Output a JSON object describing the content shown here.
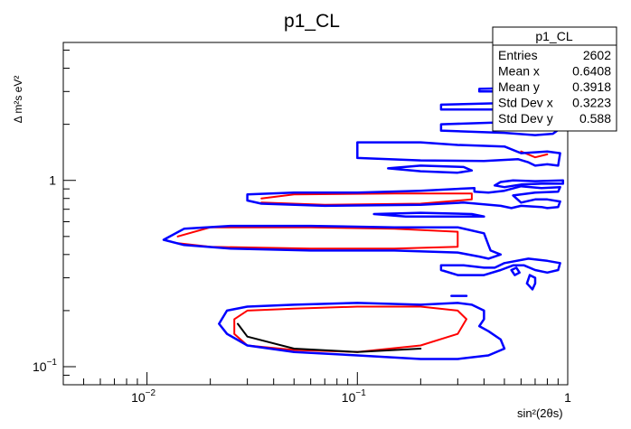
{
  "window": {
    "title": "p1_CL"
  },
  "stats_box": {
    "title": "p1_CL",
    "rows": [
      {
        "label": "Entries",
        "value": "2602"
      },
      {
        "label": "Mean x",
        "value": "0.6408"
      },
      {
        "label": "Mean y",
        "value": "0.3918"
      },
      {
        "label": "Std Dev x",
        "value": "0.3223"
      },
      {
        "label": "Std Dev y",
        "value": "0.588"
      }
    ]
  },
  "colors": {
    "red": "#ff0000",
    "black": "#000000",
    "blue": "#0000ff",
    "frame": "#000000"
  },
  "chart_data": {
    "type": "contour",
    "title": "p1_CL",
    "xlabel": "sin²(2θs)",
    "ylabel": "Δ m²s eV²",
    "x_scale": "log",
    "y_scale": "log",
    "xlim": [
      0.004,
      1.0
    ],
    "ylim": [
      0.08,
      5.5
    ],
    "x_ticks": [
      {
        "value": 0.01,
        "label": "10",
        "exp": "−2"
      },
      {
        "value": 0.1,
        "label": "10",
        "exp": "−1"
      },
      {
        "value": 1.0,
        "label": "1",
        "exp": ""
      }
    ],
    "y_ticks": [
      {
        "value": 0.1,
        "label": "10",
        "exp": "−1"
      },
      {
        "value": 1.0,
        "label": "1",
        "exp": ""
      }
    ],
    "grid": false,
    "series": [
      {
        "color": "#ff0000",
        "width": 2,
        "contours": [
          [
            [
              0.026,
              0.15
            ],
            [
              0.03,
              0.13
            ],
            [
              0.05,
              0.123
            ],
            [
              0.1,
              0.12
            ],
            [
              0.2,
              0.13
            ],
            [
              0.3,
              0.15
            ],
            [
              0.33,
              0.18
            ],
            [
              0.3,
              0.2
            ],
            [
              0.2,
              0.21
            ],
            [
              0.1,
              0.21
            ],
            [
              0.05,
              0.205
            ],
            [
              0.03,
              0.2
            ],
            [
              0.026,
              0.18
            ],
            [
              0.026,
              0.15
            ]
          ],
          [
            [
              0.014,
              0.46
            ],
            [
              0.02,
              0.44
            ],
            [
              0.06,
              0.43
            ],
            [
              0.15,
              0.43
            ],
            [
              0.3,
              0.44
            ],
            [
              0.3,
              0.53
            ],
            [
              0.15,
              0.55
            ],
            [
              0.06,
              0.56
            ],
            [
              0.02,
              0.56
            ],
            [
              0.014,
              0.5
            ]
          ],
          [
            [
              0.035,
              0.76
            ],
            [
              0.07,
              0.74
            ],
            [
              0.2,
              0.75
            ],
            [
              0.35,
              0.79
            ],
            [
              0.35,
              0.85
            ],
            [
              0.15,
              0.85
            ],
            [
              0.05,
              0.84
            ],
            [
              0.035,
              0.8
            ]
          ],
          [
            [
              0.6,
              1.43
            ],
            [
              0.7,
              1.33
            ],
            [
              0.8,
              1.38
            ]
          ]
        ]
      },
      {
        "color": "#000000",
        "width": 2,
        "contours": [
          [
            [
              0.027,
              0.17
            ],
            [
              0.03,
              0.145
            ],
            [
              0.05,
              0.125
            ],
            [
              0.1,
              0.12
            ],
            [
              0.2,
              0.125
            ]
          ]
        ]
      },
      {
        "color": "#0000ff",
        "width": 2.5,
        "contours": [
          [
            [
              0.022,
              0.17
            ],
            [
              0.024,
              0.15
            ],
            [
              0.03,
              0.13
            ],
            [
              0.05,
              0.12
            ],
            [
              0.1,
              0.115
            ],
            [
              0.2,
              0.11
            ],
            [
              0.3,
              0.11
            ],
            [
              0.42,
              0.115
            ],
            [
              0.5,
              0.125
            ],
            [
              0.48,
              0.14
            ],
            [
              0.42,
              0.155
            ],
            [
              0.38,
              0.165
            ],
            [
              0.4,
              0.18
            ],
            [
              0.4,
              0.2
            ],
            [
              0.35,
              0.215
            ],
            [
              0.3,
              0.22
            ],
            [
              0.2,
              0.215
            ],
            [
              0.1,
              0.22
            ],
            [
              0.05,
              0.215
            ],
            [
              0.03,
              0.21
            ],
            [
              0.024,
              0.2
            ],
            [
              0.022,
              0.17
            ]
          ],
          [
            [
              0.012,
              0.48
            ],
            [
              0.015,
              0.45
            ],
            [
              0.025,
              0.43
            ],
            [
              0.06,
              0.42
            ],
            [
              0.15,
              0.42
            ],
            [
              0.3,
              0.41
            ],
            [
              0.38,
              0.39
            ],
            [
              0.42,
              0.38
            ],
            [
              0.48,
              0.4
            ],
            [
              0.43,
              0.42
            ],
            [
              0.42,
              0.45
            ],
            [
              0.4,
              0.52
            ],
            [
              0.3,
              0.56
            ],
            [
              0.15,
              0.56
            ],
            [
              0.06,
              0.57
            ],
            [
              0.025,
              0.57
            ],
            [
              0.015,
              0.55
            ],
            [
              0.012,
              0.48
            ]
          ],
          [
            [
              0.25,
              0.35
            ],
            [
              0.25,
              0.33
            ],
            [
              0.3,
              0.31
            ],
            [
              0.4,
              0.31
            ],
            [
              0.48,
              0.33
            ],
            [
              0.55,
              0.35
            ],
            [
              0.62,
              0.35
            ],
            [
              0.7,
              0.33
            ],
            [
              0.8,
              0.32
            ],
            [
              0.9,
              0.33
            ],
            [
              0.92,
              0.36
            ],
            [
              0.8,
              0.37
            ],
            [
              0.65,
              0.38
            ],
            [
              0.5,
              0.36
            ],
            [
              0.45,
              0.34
            ],
            [
              0.4,
              0.34
            ],
            [
              0.32,
              0.35
            ],
            [
              0.25,
              0.35
            ]
          ],
          [
            [
              0.54,
              0.33
            ],
            [
              0.56,
              0.31
            ],
            [
              0.59,
              0.32
            ],
            [
              0.57,
              0.34
            ],
            [
              0.54,
              0.33
            ]
          ],
          [
            [
              0.03,
              0.78
            ],
            [
              0.035,
              0.75
            ],
            [
              0.07,
              0.73
            ],
            [
              0.2,
              0.74
            ],
            [
              0.32,
              0.76
            ],
            [
              0.48,
              0.73
            ],
            [
              0.54,
              0.71
            ],
            [
              0.6,
              0.73
            ],
            [
              0.75,
              0.72
            ],
            [
              0.8,
              0.71
            ],
            [
              0.9,
              0.72
            ],
            [
              0.92,
              0.77
            ],
            [
              0.8,
              0.79
            ],
            [
              0.7,
              0.79
            ],
            [
              0.6,
              0.76
            ],
            [
              0.55,
              0.83
            ],
            [
              0.7,
              0.86
            ],
            [
              0.9,
              0.87
            ],
            [
              0.92,
              0.92
            ],
            [
              0.75,
              0.91
            ],
            [
              0.6,
              0.93
            ],
            [
              0.5,
              0.88
            ],
            [
              0.42,
              0.86
            ],
            [
              0.36,
              0.87
            ],
            [
              0.36,
              0.91
            ],
            [
              0.2,
              0.88
            ],
            [
              0.1,
              0.86
            ],
            [
              0.05,
              0.86
            ],
            [
              0.03,
              0.84
            ],
            [
              0.03,
              0.78
            ]
          ],
          [
            [
              0.12,
              0.66
            ],
            [
              0.17,
              0.64
            ],
            [
              0.28,
              0.64
            ],
            [
              0.4,
              0.64
            ],
            [
              0.35,
              0.66
            ],
            [
              0.2,
              0.67
            ],
            [
              0.12,
              0.66
            ]
          ],
          [
            [
              0.64,
              0.28
            ],
            [
              0.68,
              0.26
            ],
            [
              0.7,
              0.28
            ],
            [
              0.7,
              0.3
            ],
            [
              0.66,
              0.31
            ],
            [
              0.64,
              0.28
            ]
          ],
          [
            [
              0.28,
              0.24
            ],
            [
              0.33,
              0.24
            ]
          ],
          [
            [
              0.1,
              1.32
            ],
            [
              0.2,
              1.28
            ],
            [
              0.4,
              1.27
            ],
            [
              0.58,
              1.3
            ],
            [
              0.65,
              1.25
            ],
            [
              0.7,
              1.2
            ],
            [
              0.8,
              1.22
            ],
            [
              0.9,
              1.2
            ],
            [
              0.92,
              1.4
            ],
            [
              0.8,
              1.43
            ],
            [
              0.6,
              1.4
            ],
            [
              0.5,
              1.52
            ],
            [
              0.3,
              1.55
            ],
            [
              0.2,
              1.6
            ],
            [
              0.1,
              1.6
            ],
            [
              0.1,
              1.32
            ]
          ],
          [
            [
              0.45,
              0.94
            ],
            [
              0.5,
              0.92
            ],
            [
              0.6,
              0.95
            ],
            [
              0.75,
              0.96
            ],
            [
              0.95,
              0.96
            ],
            [
              0.95,
              1.0
            ],
            [
              0.7,
              0.99
            ],
            [
              0.55,
              1.0
            ],
            [
              0.48,
              0.98
            ],
            [
              0.45,
              0.94
            ]
          ],
          [
            [
              0.14,
              1.16
            ],
            [
              0.2,
              1.12
            ],
            [
              0.3,
              1.1
            ],
            [
              0.35,
              1.13
            ],
            [
              0.32,
              1.18
            ],
            [
              0.2,
              1.2
            ],
            [
              0.14,
              1.16
            ]
          ],
          [
            [
              0.25,
              1.85
            ],
            [
              0.5,
              1.8
            ],
            [
              0.7,
              1.75
            ],
            [
              0.85,
              1.78
            ],
            [
              0.92,
              1.9
            ],
            [
              0.8,
              2.0
            ],
            [
              0.5,
              2.05
            ],
            [
              0.25,
              2.0
            ],
            [
              0.25,
              1.85
            ]
          ],
          [
            [
              0.25,
              2.4
            ],
            [
              0.5,
              2.4
            ],
            [
              0.72,
              2.45
            ],
            [
              0.85,
              2.5
            ],
            [
              0.72,
              2.6
            ],
            [
              0.5,
              2.6
            ],
            [
              0.25,
              2.55
            ],
            [
              0.25,
              2.4
            ]
          ],
          [
            [
              0.38,
              3.0
            ],
            [
              0.6,
              3.0
            ],
            [
              0.85,
              3.05
            ],
            [
              0.92,
              3.15
            ],
            [
              0.7,
              3.15
            ],
            [
              0.5,
              3.12
            ],
            [
              0.38,
              3.1
            ],
            [
              0.38,
              3.0
            ]
          ]
        ]
      }
    ]
  }
}
